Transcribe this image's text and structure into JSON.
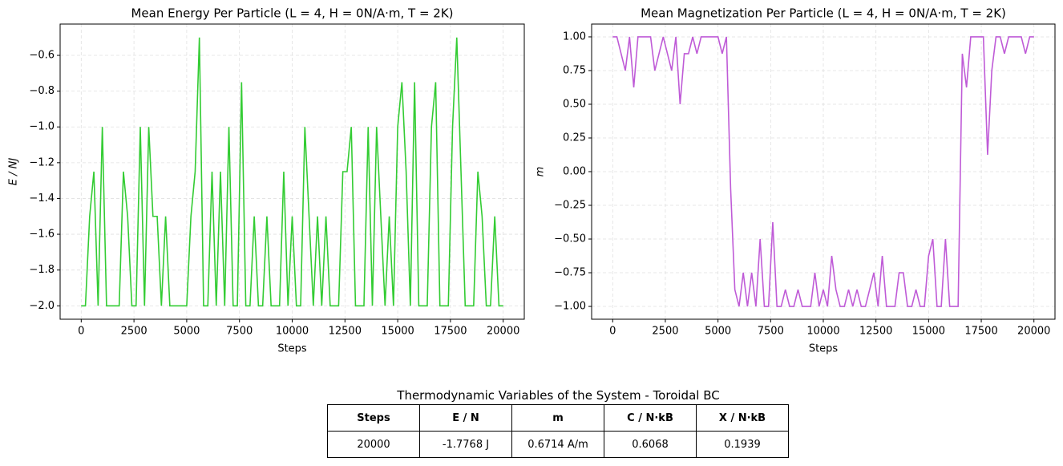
{
  "chart_data": [
    {
      "type": "line",
      "title": "Mean Energy Per Particle (L = 4, H = 0N/A·m, T = 2K)",
      "x_label": "Steps",
      "y_label": "E / NJ",
      "x": [
        0,
        200,
        400,
        600,
        800,
        1000,
        1200,
        1400,
        1600,
        1800,
        2000,
        2200,
        2400,
        2600,
        2800,
        3000,
        3200,
        3400,
        3600,
        3800,
        4000,
        4200,
        4400,
        4600,
        4800,
        5000,
        5200,
        5400,
        5600,
        5800,
        6000,
        6200,
        6400,
        6600,
        6800,
        7000,
        7200,
        7400,
        7600,
        7800,
        8000,
        8200,
        8400,
        8600,
        8800,
        9000,
        9200,
        9400,
        9600,
        9800,
        10000,
        10200,
        10400,
        10600,
        10800,
        11000,
        11200,
        11400,
        11600,
        11800,
        12000,
        12200,
        12400,
        12600,
        12800,
        13000,
        13200,
        13400,
        13600,
        13800,
        14000,
        14200,
        14400,
        14600,
        14800,
        15000,
        15200,
        15400,
        15600,
        15800,
        16000,
        16200,
        16400,
        16600,
        16800,
        17000,
        17200,
        17400,
        17600,
        17800,
        18000,
        18200,
        18400,
        18600,
        18800,
        19000,
        19200,
        19400,
        19600,
        19800,
        20000
      ],
      "values": [
        -2,
        -2,
        -1.5,
        -1.25,
        -2,
        -1,
        -2,
        -2,
        -2,
        -2,
        -1.25,
        -1.5,
        -2,
        -2,
        -1,
        -2,
        -1,
        -1.5,
        -1.5,
        -2,
        -1.5,
        -2,
        -2,
        -2,
        -2,
        -2,
        -1.5,
        -1.25,
        -0.5,
        -2,
        -2,
        -1.25,
        -2,
        -1.25,
        -2,
        -1,
        -2,
        -2,
        -0.75,
        -2,
        -2,
        -1.5,
        -2,
        -2,
        -1.5,
        -2,
        -2,
        -2,
        -1.25,
        -2,
        -1.5,
        -2,
        -2,
        -1,
        -1.5,
        -2,
        -1.5,
        -2,
        -1.5,
        -2,
        -2,
        -2,
        -1.25,
        -1.25,
        -1,
        -2,
        -2,
        -2,
        -1,
        -2,
        -1,
        -1.5,
        -2,
        -1.5,
        -2,
        -1,
        -0.75,
        -1.25,
        -2,
        -0.75,
        -2,
        -2,
        -2,
        -1,
        -0.75,
        -2,
        -2,
        -2,
        -1,
        -0.5,
        -1.25,
        -2,
        -2,
        -2,
        -1.25,
        -1.5,
        -2,
        -2,
        -1.5,
        -2,
        -2
      ],
      "color": "#33cc33",
      "xlim": [
        -1000,
        21000
      ],
      "ylim": [
        -2.075,
        -0.425
      ],
      "xticks": [
        0,
        2500,
        5000,
        7500,
        10000,
        12500,
        15000,
        17500,
        20000
      ],
      "yticks": [
        {
          "value": -2,
          "label": "−2.0"
        },
        {
          "value": -1.8,
          "label": "−1.8"
        },
        {
          "value": -1.6,
          "label": "−1.6"
        },
        {
          "value": -1.4,
          "label": "−1.4"
        },
        {
          "value": -1.2,
          "label": "−1.2"
        },
        {
          "value": -1,
          "label": "−1.0"
        },
        {
          "value": -0.8,
          "label": "−0.8"
        },
        {
          "value": -0.6,
          "label": "−0.6"
        }
      ],
      "grid": true
    },
    {
      "type": "line",
      "title": "Mean Magnetization Per Particle (L = 4, H = 0N/A·m, T = 2K)",
      "x_label": "Steps",
      "y_label": "m",
      "x": [
        0,
        200,
        400,
        600,
        800,
        1000,
        1200,
        1400,
        1600,
        1800,
        2000,
        2200,
        2400,
        2600,
        2800,
        3000,
        3200,
        3400,
        3600,
        3800,
        4000,
        4200,
        4400,
        4600,
        4800,
        5000,
        5200,
        5400,
        5600,
        5800,
        6000,
        6200,
        6400,
        6600,
        6800,
        7000,
        7200,
        7400,
        7600,
        7800,
        8000,
        8200,
        8400,
        8600,
        8800,
        9000,
        9200,
        9400,
        9600,
        9800,
        10000,
        10200,
        10400,
        10600,
        10800,
        11000,
        11200,
        11400,
        11600,
        11800,
        12000,
        12200,
        12400,
        12600,
        12800,
        13000,
        13200,
        13400,
        13600,
        13800,
        14000,
        14200,
        14400,
        14600,
        14800,
        15000,
        15200,
        15400,
        15600,
        15800,
        16000,
        16200,
        16400,
        16600,
        16800,
        17000,
        17200,
        17400,
        17600,
        17800,
        18000,
        18200,
        18400,
        18600,
        18800,
        19000,
        19200,
        19400,
        19600,
        19800,
        20000
      ],
      "values": [
        1,
        1,
        0.875,
        0.75,
        1,
        0.625,
        1,
        1,
        1,
        1,
        0.75,
        0.875,
        1,
        0.875,
        0.75,
        1,
        0.5,
        0.875,
        0.875,
        1,
        0.875,
        1,
        1,
        1,
        1,
        1,
        0.875,
        1,
        -0.125,
        -0.875,
        -1,
        -0.75,
        -1,
        -0.75,
        -1,
        -0.5,
        -1,
        -1,
        -0.375,
        -1,
        -1,
        -0.875,
        -1,
        -1,
        -0.875,
        -1,
        -1,
        -1,
        -0.75,
        -1,
        -0.875,
        -1,
        -0.625,
        -0.875,
        -1,
        -1,
        -0.875,
        -1,
        -0.875,
        -1,
        -1,
        -0.875,
        -0.75,
        -1,
        -0.625,
        -1,
        -1,
        -1,
        -0.75,
        -0.75,
        -1,
        -1,
        -0.875,
        -1,
        -1,
        -0.625,
        -0.5,
        -1,
        -1,
        -0.5,
        -1,
        -1,
        -1,
        0.875,
        0.625,
        1,
        1,
        1,
        1,
        0.125,
        0.75,
        1,
        1,
        0.875,
        1,
        1,
        1,
        1,
        0.875,
        1,
        1
      ],
      "color": "#bf5bd7",
      "xlim": [
        -1000,
        21000
      ],
      "ylim": [
        -1.095,
        1.095
      ],
      "xticks": [
        0,
        2500,
        5000,
        7500,
        10000,
        12500,
        15000,
        17500,
        20000
      ],
      "yticks": [
        {
          "value": -1,
          "label": "−1.00"
        },
        {
          "value": -0.75,
          "label": "−0.75"
        },
        {
          "value": -0.5,
          "label": "−0.50"
        },
        {
          "value": -0.25,
          "label": "−0.25"
        },
        {
          "value": 0,
          "label": "0.00"
        },
        {
          "value": 0.25,
          "label": "0.25"
        },
        {
          "value": 0.5,
          "label": "0.50"
        },
        {
          "value": 0.75,
          "label": "0.75"
        },
        {
          "value": 1,
          "label": "1.00"
        }
      ],
      "grid": true
    }
  ],
  "table": {
    "title": "Thermodynamic Variables of the System - Toroidal BC",
    "columns": [
      "Steps",
      "E / N",
      "m",
      "C / N·kB",
      "X / N·kB"
    ],
    "rows": [
      [
        "20000",
        "-1.7768 J",
        "0.6714 A/m",
        "0.6068",
        "0.1939"
      ]
    ]
  }
}
